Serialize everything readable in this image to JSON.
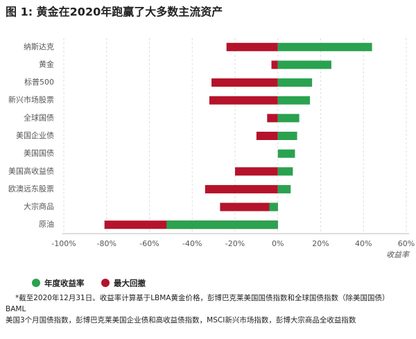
{
  "chart_data": {
    "type": "bar",
    "orientation": "horizontal",
    "title": "图 1: 黄金在2020年跑赢了大多数主流资产",
    "categories": [
      "纳斯达克",
      "黄金",
      "标普500",
      "新兴市场股票",
      "全球国债",
      "美国企业债",
      "美国国债",
      "美国高收益债",
      "欧澳远东股票",
      "大宗商品",
      "原油"
    ],
    "series": [
      {
        "name": "最大回撤",
        "color": "#b5132b",
        "values": [
          -24,
          -3,
          -31,
          -32,
          -5,
          -10,
          null,
          -20,
          -34,
          -27,
          -81
        ]
      },
      {
        "name": "年度收益率",
        "color": "#2aa24f",
        "values": [
          44,
          25,
          16,
          15,
          10,
          9,
          8,
          7,
          6,
          -4,
          -52
        ]
      }
    ],
    "xlabel": "收益率",
    "xlim": [
      -100,
      60
    ],
    "xticks": [
      {
        "value": -100,
        "label": "-100%"
      },
      {
        "value": -80,
        "label": "-80%"
      },
      {
        "value": -60,
        "label": "-60%"
      },
      {
        "value": -40,
        "label": "-40%"
      },
      {
        "value": -20,
        "label": "-20%"
      },
      {
        "value": 0,
        "label": "0%"
      },
      {
        "value": 20,
        "label": "20%"
      },
      {
        "value": 40,
        "label": "40%"
      },
      {
        "value": 60,
        "label": "60%"
      }
    ],
    "grid": true,
    "notes": [
      "*截至2020年12月31日。收益率计算基于LBMA黄金价格，彭博巴克莱美国国债指数和全球国债指数（除美国国债）",
      "BAML",
      "美国3个月国债指数，彭博巴克莱美国企业债和高收益债指数，MSCI新兴市场指数，彭博大宗商品全收益指数"
    ]
  }
}
